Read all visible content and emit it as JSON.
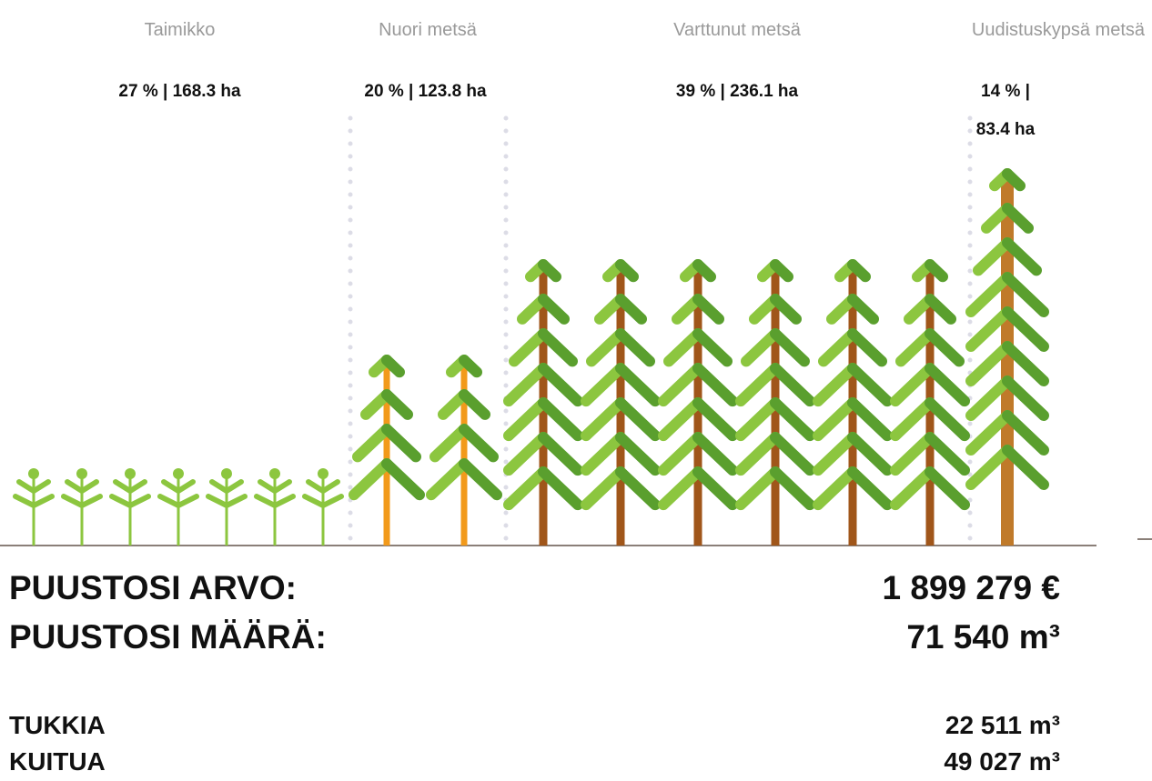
{
  "stages": [
    {
      "name": "Taimikko",
      "stat": "27 % | 168.3 ha"
    },
    {
      "name": "Nuori metsä",
      "stat": "20 % | 123.8 ha"
    },
    {
      "name": "Varttunut metsä",
      "stat": "39 % | 236.1 ha"
    },
    {
      "name": "Uudistuskypsä metsä",
      "stat": "14 % | 83.4 ha"
    }
  ],
  "summary": [
    {
      "label": "PUUSTOSI ARVO:",
      "value": "1 899 279 €"
    },
    {
      "label": "PUUSTOSI MÄÄRÄ:",
      "value": "71 540 m³"
    }
  ],
  "breakdown": [
    {
      "label": "TUKKIA",
      "value": "22 511 m³"
    },
    {
      "label": "KUITUA",
      "value": "49 027 m³"
    }
  ]
}
